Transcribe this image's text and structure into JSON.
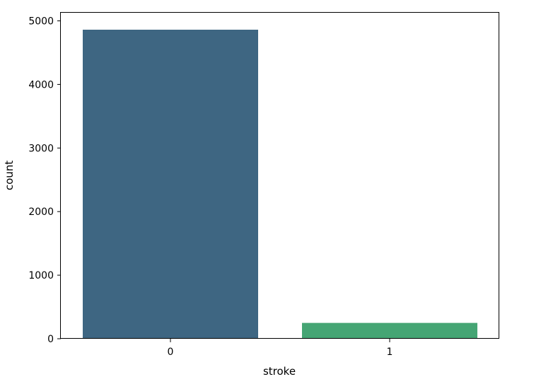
{
  "chart_data": {
    "type": "bar",
    "title": "",
    "xlabel": "stroke",
    "ylabel": "count",
    "categories": [
      "0",
      "1"
    ],
    "values": [
      4861,
      249
    ],
    "bar_colors": [
      "#3e6682",
      "#45a574"
    ],
    "ylim": [
      0,
      5100
    ],
    "yticks": [
      0,
      1000,
      2000,
      3000,
      4000,
      5000
    ],
    "ytick_labels": [
      "0",
      "1000",
      "2000",
      "3000",
      "4000",
      "5000"
    ],
    "grid": false,
    "legend": "none"
  }
}
